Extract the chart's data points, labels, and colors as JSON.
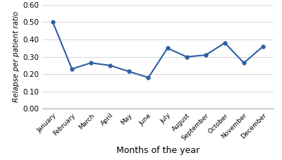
{
  "months": [
    "January",
    "February",
    "March",
    "April",
    "May",
    "June",
    "July",
    "August",
    "September",
    "October",
    "November",
    "December"
  ],
  "values": [
    0.5,
    0.23,
    0.265,
    0.25,
    0.215,
    0.18,
    0.35,
    0.3,
    0.31,
    0.38,
    0.265,
    0.36
  ],
  "xlabel": "Months of the year",
  "ylabel": "Relapse per patient ratio",
  "ylim": [
    0.0,
    0.6
  ],
  "yticks": [
    0.0,
    0.1,
    0.2,
    0.3,
    0.4,
    0.5,
    0.6
  ],
  "line_color": "#2E5FA3",
  "marker": "o",
  "marker_size": 3.5,
  "line_width": 1.5,
  "background_color": "#ffffff",
  "grid_color": "#d0d0d0",
  "xlabel_fontsize": 9,
  "ylabel_fontsize": 7.5,
  "xtick_fontsize": 6.5,
  "ytick_fontsize": 7.5
}
